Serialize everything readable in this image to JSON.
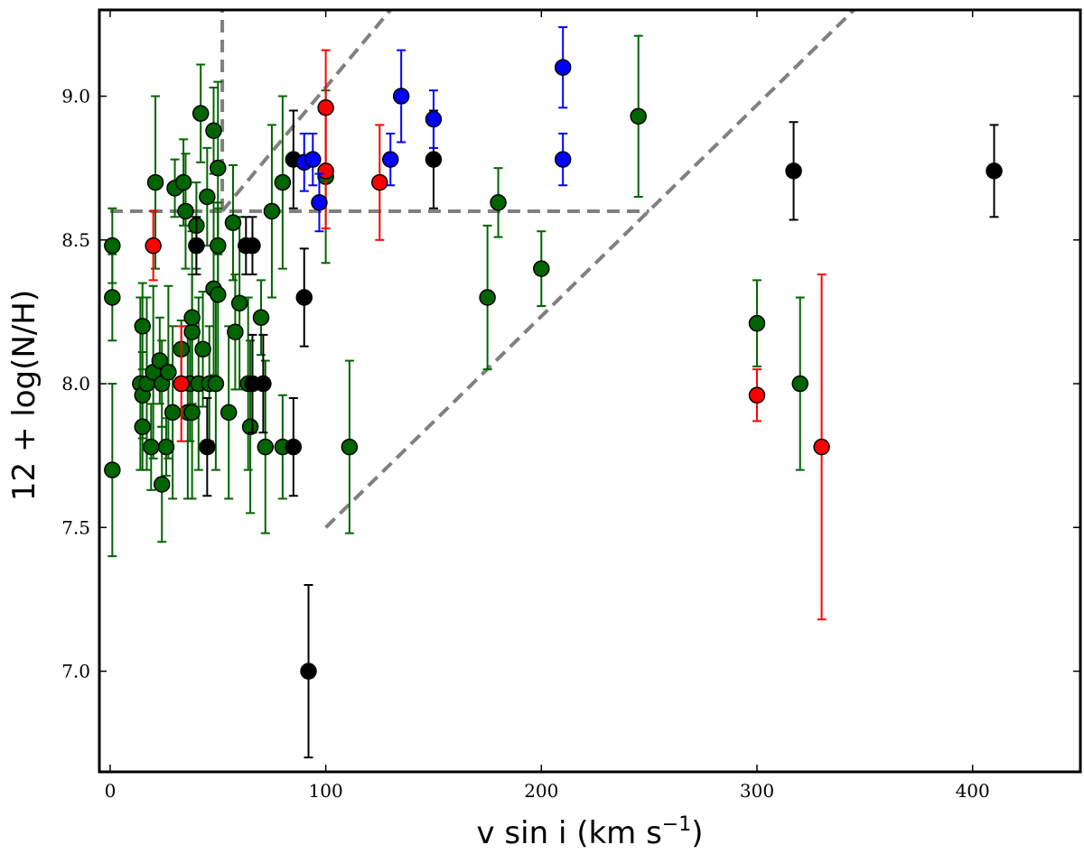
{
  "chart_data": {
    "type": "scatter",
    "title": "",
    "xlabel": "v sin i (km s",
    "xlabel_sup": "−1",
    "xlabel_close": ")",
    "ylabel": "12 + log(N/H)",
    "xlim": [
      -5,
      450
    ],
    "ylim": [
      6.65,
      9.3
    ],
    "x_ticks": [
      0,
      100,
      200,
      300,
      400
    ],
    "x_tick_labels": [
      "0",
      "100",
      "200",
      "300",
      "400"
    ],
    "y_ticks": [
      7.0,
      7.5,
      8.0,
      8.5,
      9.0
    ],
    "y_tick_labels": [
      "7.0",
      "7.5",
      "8.0",
      "8.5",
      "9.0"
    ],
    "grid": false,
    "colors": {
      "green": "#006400",
      "black": "#000000",
      "red": "#ff0000",
      "blue": "#0000ff",
      "guide": "#808080"
    },
    "guide_lines": [
      {
        "x": [
          0,
          250
        ],
        "y": [
          8.6,
          8.6
        ]
      },
      {
        "x": [
          52,
          52
        ],
        "y": [
          8.6,
          9.3
        ]
      },
      {
        "x": [
          52,
          130
        ],
        "y": [
          8.6,
          9.3
        ]
      },
      {
        "x": [
          100,
          345
        ],
        "y": [
          7.5,
          9.3
        ]
      }
    ],
    "series": [
      {
        "color": "green",
        "points": [
          [
            1,
            8.48,
            0.13
          ],
          [
            1,
            8.3,
            0.15
          ],
          [
            1,
            7.7,
            0.3
          ],
          [
            14,
            8.0,
            0.3
          ],
          [
            15,
            8.2,
            0.15
          ],
          [
            15,
            7.96,
            0.15
          ],
          [
            15,
            7.85,
            0.15
          ],
          [
            17,
            8.0,
            0.3
          ],
          [
            19,
            7.78,
            0.15
          ],
          [
            20,
            8.04,
            0.3
          ],
          [
            21,
            8.7,
            0.3
          ],
          [
            23,
            8.08,
            0.15
          ],
          [
            24,
            8.0,
            0.15
          ],
          [
            24,
            7.65,
            0.2
          ],
          [
            26,
            7.78,
            0.1
          ],
          [
            27,
            8.04,
            0.3
          ],
          [
            29,
            7.9,
            0.3
          ],
          [
            30,
            8.68,
            0.1
          ],
          [
            33,
            8.12,
            0.1
          ],
          [
            34,
            8.7,
            0.15
          ],
          [
            35,
            8.6,
            0.2
          ],
          [
            36,
            7.9,
            0.3
          ],
          [
            37,
            8.0,
            0.2
          ],
          [
            38,
            8.18,
            0.2
          ],
          [
            38,
            8.23,
            0.3
          ],
          [
            38,
            7.9,
            0.3
          ],
          [
            40,
            8.55,
            0.15
          ],
          [
            41,
            8.0,
            0.3
          ],
          [
            42,
            8.94,
            0.17
          ],
          [
            43,
            8.12,
            0.2
          ],
          [
            45,
            8.65,
            0.17
          ],
          [
            46,
            8.0,
            0.2
          ],
          [
            48,
            8.33,
            0.3
          ],
          [
            48,
            8.88,
            0.15
          ],
          [
            49,
            8.0,
            0.3
          ],
          [
            50,
            8.75,
            0.3
          ],
          [
            50,
            8.48,
            0.15
          ],
          [
            50,
            8.31,
            0.3
          ],
          [
            55,
            7.9,
            0.3
          ],
          [
            57,
            8.56,
            0.2
          ],
          [
            58,
            8.18,
            0.2
          ],
          [
            60,
            8.28,
            0.3
          ],
          [
            64,
            8.0,
            0.3
          ],
          [
            65,
            7.85,
            0.3
          ],
          [
            70,
            8.23,
            0.13
          ],
          [
            72,
            7.78,
            0.3
          ],
          [
            75,
            8.6,
            0.3
          ],
          [
            80,
            7.78,
            0.18
          ],
          [
            80,
            8.7,
            0.3
          ],
          [
            100,
            8.72,
            0.3
          ],
          [
            111,
            7.78,
            0.3
          ],
          [
            175,
            8.3,
            0.25
          ],
          [
            180,
            8.63,
            0.12
          ],
          [
            200,
            8.4,
            0.13
          ],
          [
            245,
            8.93,
            0.28
          ],
          [
            300,
            8.21,
            0.15
          ],
          [
            320,
            8.0,
            0.3
          ]
        ]
      },
      {
        "color": "black",
        "points": [
          [
            40,
            8.48,
            0.1
          ],
          [
            45,
            7.78,
            0.17
          ],
          [
            63,
            8.48,
            0.1
          ],
          [
            66,
            8.48,
            0.1
          ],
          [
            66,
            8.0,
            0.17
          ],
          [
            71,
            8.0,
            0.17
          ],
          [
            85,
            8.78,
            0.17
          ],
          [
            85,
            7.78,
            0.17
          ],
          [
            90,
            8.3,
            0.17
          ],
          [
            92,
            7.0,
            0.3
          ],
          [
            150,
            8.78,
            0.17
          ],
          [
            317,
            8.74,
            0.17
          ],
          [
            410,
            8.74,
            0.16
          ]
        ]
      },
      {
        "color": "red",
        "points": [
          [
            20,
            8.48,
            0.12
          ],
          [
            33,
            8.0,
            0.2
          ],
          [
            100,
            8.96,
            0.2
          ],
          [
            100,
            8.74,
            0.2
          ],
          [
            125,
            8.7,
            0.2
          ],
          [
            300,
            7.96,
            0.09
          ],
          [
            330,
            7.78,
            0.6
          ]
        ]
      },
      {
        "color": "blue",
        "points": [
          [
            90,
            8.77,
            0.1
          ],
          [
            94,
            8.78,
            0.09
          ],
          [
            97,
            8.63,
            0.1
          ],
          [
            130,
            8.78,
            0.09
          ],
          [
            135,
            9.0,
            0.16
          ],
          [
            150,
            8.92,
            0.1
          ],
          [
            210,
            9.1,
            0.14
          ],
          [
            210,
            8.78,
            0.09
          ]
        ]
      }
    ]
  }
}
